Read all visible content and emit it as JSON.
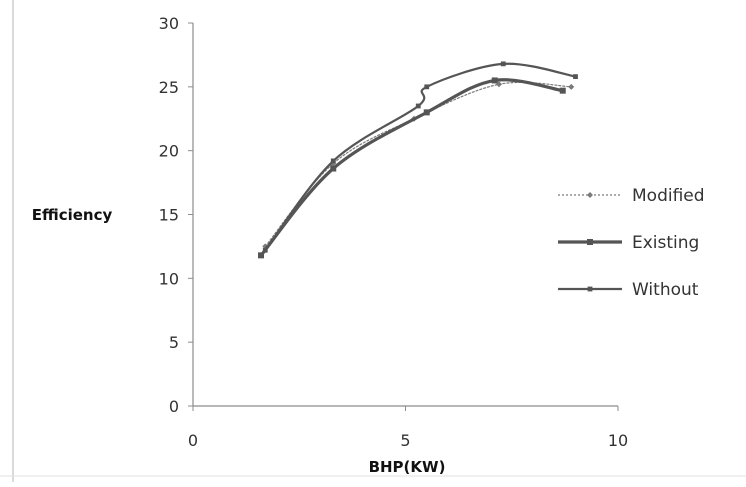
{
  "chart_data": {
    "type": "line",
    "title": "",
    "xlabel": "BHP(KW)",
    "ylabel": "Efficiency",
    "xlim": [
      0,
      10
    ],
    "ylim": [
      0,
      30
    ],
    "x_ticks": [
      0,
      5,
      10
    ],
    "y_ticks": [
      0,
      5,
      10,
      15,
      20,
      25,
      30
    ],
    "x_tick_labels": [
      "0",
      "5",
      "10"
    ],
    "y_tick_labels": [
      "0",
      "5",
      "10",
      "15",
      "20",
      "25",
      "30"
    ],
    "grid": false,
    "legend_position": "right",
    "series": [
      {
        "name": "Modified",
        "style": "dotted",
        "color": "#7a7a7a",
        "x": [
          1.7,
          3.3,
          5.2,
          7.2,
          8.9
        ],
        "y": [
          12.5,
          19.0,
          22.5,
          25.2,
          25.0
        ]
      },
      {
        "name": "Existing",
        "style": "solid-thick",
        "color": "#555555",
        "x": [
          1.6,
          3.3,
          5.5,
          7.1,
          8.7
        ],
        "y": [
          11.8,
          18.6,
          23.0,
          25.5,
          24.7
        ]
      },
      {
        "name": "Without",
        "style": "solid",
        "color": "#555555",
        "x": [
          1.7,
          3.3,
          5.3,
          5.5,
          7.3,
          9.0
        ],
        "y": [
          12.2,
          19.2,
          23.5,
          25.0,
          26.8,
          25.8
        ]
      }
    ]
  }
}
